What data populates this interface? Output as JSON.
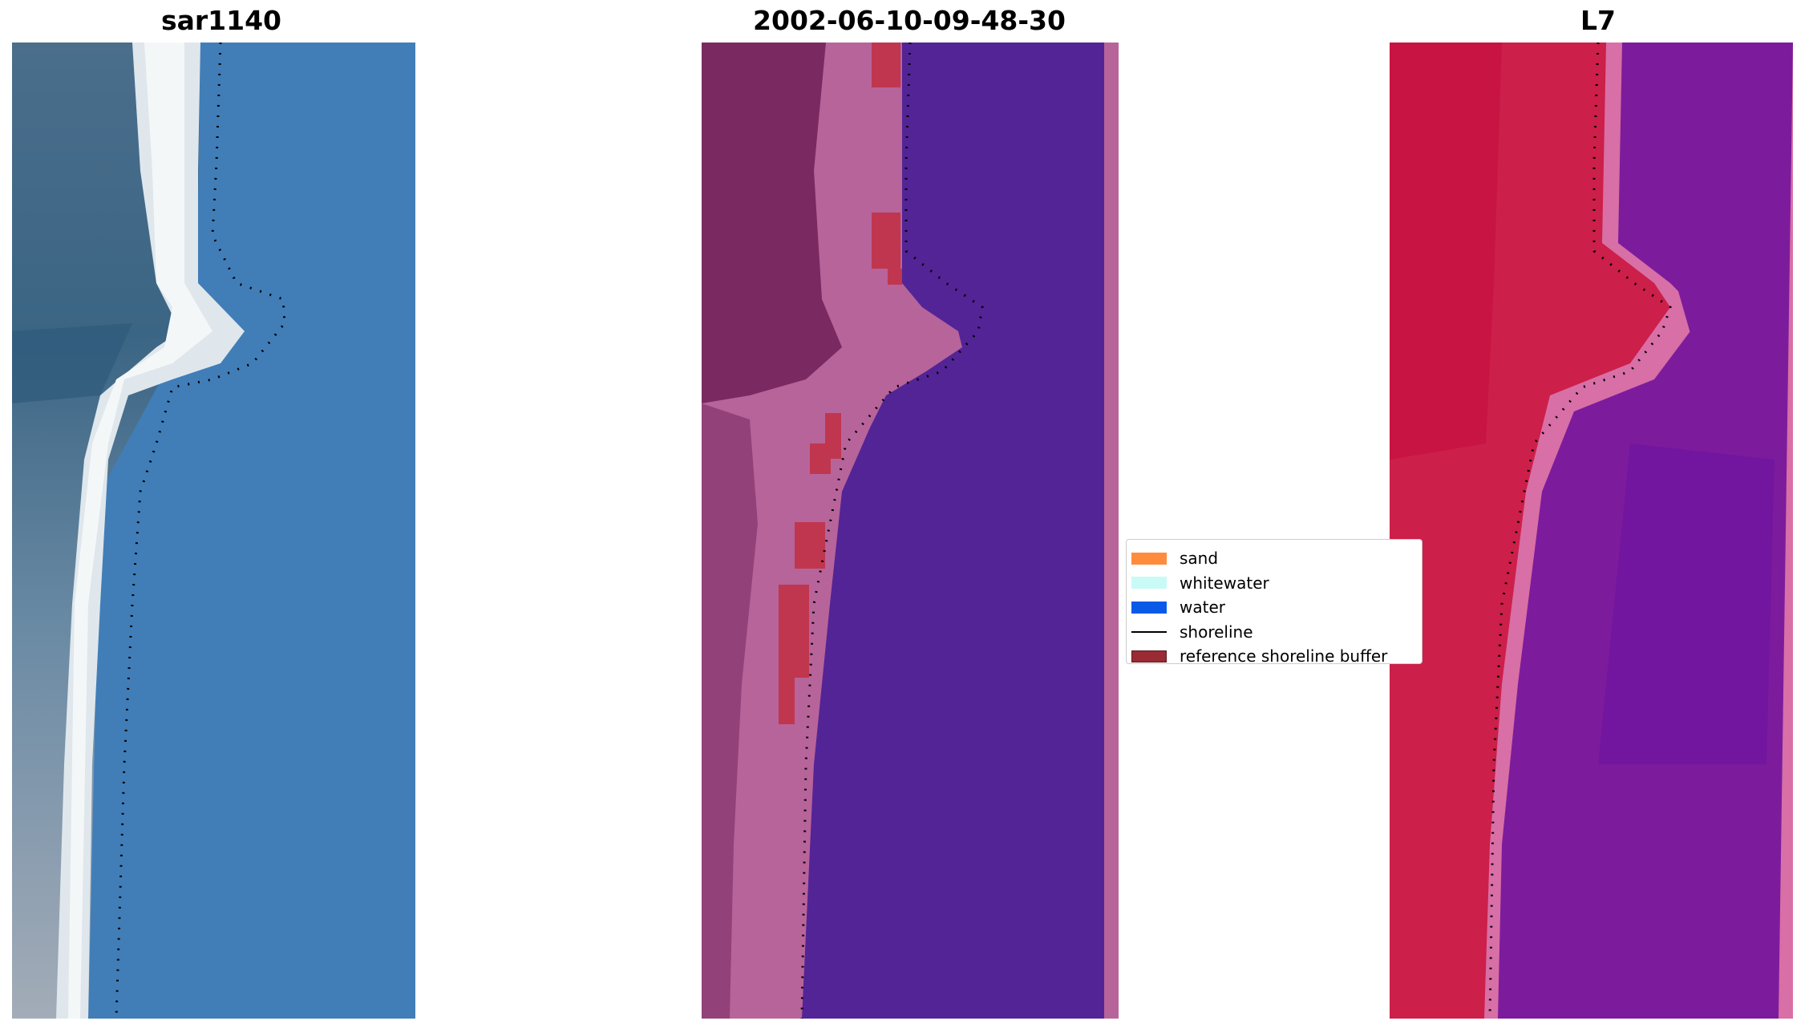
{
  "panels": [
    {
      "title": "sar1140"
    },
    {
      "title": "2002-06-10-09-48-30"
    },
    {
      "title": "L7"
    }
  ],
  "legend": {
    "items": [
      {
        "label": "sand",
        "color": "#ff8c3c",
        "kind": "patch"
      },
      {
        "label": "whitewater",
        "color": "#c8faf6",
        "kind": "patch"
      },
      {
        "label": "water",
        "color": "#0a5ae8",
        "kind": "patch"
      },
      {
        "label": "shoreline",
        "color": "#000000",
        "kind": "line"
      },
      {
        "label": "reference shoreline buffer",
        "color": "#9a2a34",
        "kind": "patch"
      }
    ]
  },
  "colors": {
    "rgb_sand": "#dfe6ea",
    "rgb_land": "#3f6b8c",
    "rgb_water": "#3d7ab7",
    "class_water": "#532496",
    "class_land": "#7a2a60",
    "class_sand": "#b7649a",
    "class_buffer": "#c0364f",
    "index_land": "#cc1f4a",
    "index_water": "#7c1c9c",
    "index_transition": "#d86fa6"
  }
}
